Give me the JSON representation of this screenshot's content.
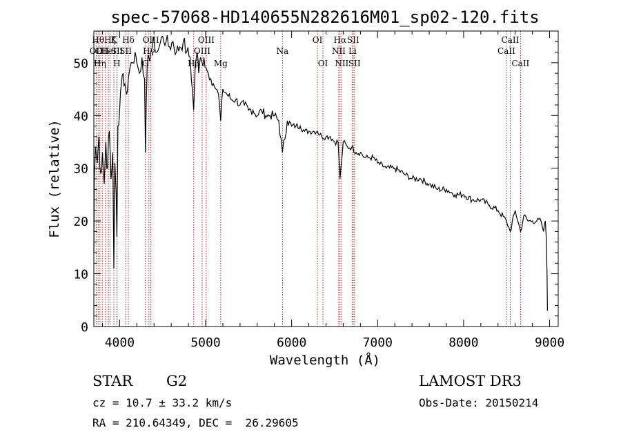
{
  "chart_data": {
    "type": "line",
    "title": "spec-57068-HD140655N282616M01_sp02-120.fits",
    "xlabel": "Wavelength (Å)",
    "ylabel": "Flux (relative)",
    "xlim": [
      3700,
      9100
    ],
    "ylim": [
      0,
      56
    ],
    "xticks": [
      4000,
      5000,
      6000,
      7000,
      8000,
      9000
    ],
    "xtick_labels": [
      "4000",
      "5000",
      "6000",
      "7000",
      "8000",
      "9000"
    ],
    "yticks": [
      0,
      10,
      20,
      30,
      40,
      50
    ],
    "ytick_labels": [
      "0",
      "10",
      "20",
      "30",
      "40",
      "50"
    ],
    "grid": false,
    "series": [
      {
        "name": "flux",
        "x": [
          3700,
          3705,
          3720,
          3740,
          3760,
          3780,
          3800,
          3820,
          3840,
          3860,
          3880,
          3900,
          3920,
          3933,
          3945,
          3960,
          3968,
          3980,
          4000,
          4020,
          4040,
          4060,
          4080,
          4101,
          4120,
          4150,
          4180,
          4200,
          4230,
          4260,
          4290,
          4300,
          4320,
          4340,
          4360,
          4380,
          4400,
          4430,
          4460,
          4500,
          4540,
          4580,
          4620,
          4660,
          4700,
          4740,
          4780,
          4820,
          4861,
          4880,
          4900,
          4920,
          4940,
          4959,
          4980,
          5007,
          5030,
          5060,
          5090,
          5120,
          5150,
          5175,
          5200,
          5250,
          5300,
          5350,
          5400,
          5450,
          5500,
          5550,
          5600,
          5650,
          5700,
          5750,
          5800,
          5850,
          5893,
          5950,
          6000,
          6050,
          6100,
          6150,
          6200,
          6250,
          6300,
          6350,
          6400,
          6450,
          6500,
          6540,
          6563,
          6600,
          6650,
          6700,
          6750,
          6800,
          6850,
          6900,
          6950,
          7000,
          7100,
          7200,
          7300,
          7400,
          7500,
          7600,
          7700,
          7800,
          7900,
          8000,
          8100,
          8200,
          8300,
          8400,
          8498,
          8542,
          8600,
          8662,
          8700,
          8750,
          8800,
          8850,
          8900,
          8930,
          8950,
          8960,
          8970,
          8975
        ],
        "y": [
          14,
          28,
          34,
          31,
          36,
          29,
          33,
          27,
          35,
          30,
          37,
          28,
          33,
          11,
          31,
          25,
          17,
          38,
          41,
          46,
          48,
          46,
          44,
          47,
          49,
          50,
          52,
          50,
          48,
          51,
          47,
          33,
          49,
          51,
          52,
          53,
          54,
          52,
          53,
          55,
          54,
          53,
          54,
          52,
          53,
          54,
          52,
          51,
          41,
          50,
          52,
          48,
          51,
          50,
          51,
          49,
          48,
          47,
          46,
          45,
          44,
          39,
          45,
          44,
          43,
          43,
          42,
          42,
          41,
          41,
          40,
          41,
          40,
          40,
          40,
          39,
          33,
          39,
          38,
          38,
          38,
          37,
          37,
          37,
          37,
          36,
          36,
          36,
          35,
          35,
          28,
          35,
          34,
          34,
          33,
          33,
          32,
          32,
          32,
          31,
          30,
          30,
          29,
          28,
          28,
          27,
          26,
          26,
          25,
          25,
          24,
          24,
          23,
          22,
          20,
          18,
          22,
          18,
          21,
          20,
          20,
          20,
          20,
          18,
          20,
          17,
          10,
          3
        ]
      }
    ],
    "lines": [
      {
        "wavelength": 3727,
        "label": "OII",
        "row": 2
      },
      {
        "wavelength": 3750,
        "label": "Hθ",
        "row": 1
      },
      {
        "wavelength": 3771,
        "label": "Hη",
        "row": 3
      },
      {
        "wavelength": 3798,
        "label": "OII",
        "row": 2
      },
      {
        "wavelength": 3835,
        "label": "",
        "row": 3
      },
      {
        "wavelength": 3869,
        "label": "HeI",
        "row": 2
      },
      {
        "wavelength": 3889,
        "label": "Hζ",
        "row": 1
      },
      {
        "wavelength": 3933,
        "label": "K",
        "row": 1
      },
      {
        "wavelength": 3968,
        "label": "H",
        "row": 3
      },
      {
        "wavelength": 3970,
        "label": "SII",
        "row": 2
      },
      {
        "wavelength": 4070,
        "label": "SII",
        "row": 2
      },
      {
        "wavelength": 4101,
        "label": "Hδ",
        "row": 1
      },
      {
        "wavelength": 4300,
        "label": "G",
        "row": 3
      },
      {
        "wavelength": 4340,
        "label": "Hγ",
        "row": 2
      },
      {
        "wavelength": 4363,
        "label": "OIII",
        "row": 1
      },
      {
        "wavelength": 4861,
        "label": "Hβ",
        "row": 3
      },
      {
        "wavelength": 4959,
        "label": "OIII",
        "row": 2
      },
      {
        "wavelength": 5007,
        "label": "OIII",
        "row": 1
      },
      {
        "wavelength": 5175,
        "label": "Mg",
        "row": 3
      },
      {
        "wavelength": 5893,
        "label": "Na",
        "row": 2
      },
      {
        "wavelength": 6300,
        "label": "OI",
        "row": 1
      },
      {
        "wavelength": 6364,
        "label": "OI",
        "row": 3
      },
      {
        "wavelength": 6548,
        "label": "NII",
        "row": 2
      },
      {
        "wavelength": 6563,
        "label": "Hα",
        "row": 1
      },
      {
        "wavelength": 6583,
        "label": "NII",
        "row": 3
      },
      {
        "wavelength": 6708,
        "label": "Li",
        "row": 2
      },
      {
        "wavelength": 6716,
        "label": "SII",
        "row": 1
      },
      {
        "wavelength": 6731,
        "label": "SII",
        "row": 3
      },
      {
        "wavelength": 8498,
        "label": "CaII",
        "row": 2
      },
      {
        "wavelength": 8542,
        "label": "CaII",
        "row": 1
      },
      {
        "wavelength": 8662,
        "label": "CaII",
        "row": 3
      }
    ]
  },
  "info": {
    "object_class": "STAR",
    "subclass": "G2",
    "survey": "LAMOST DR3",
    "cz": "cz = 10.7 ± 33.2 km/s",
    "obs_date": "Obs-Date: 20150214",
    "coords": "RA = 210.64349, DEC =  26.29605"
  },
  "colors": {
    "axis": "#000000",
    "spectrum": "#000000",
    "line_markers": "#b22222"
  }
}
